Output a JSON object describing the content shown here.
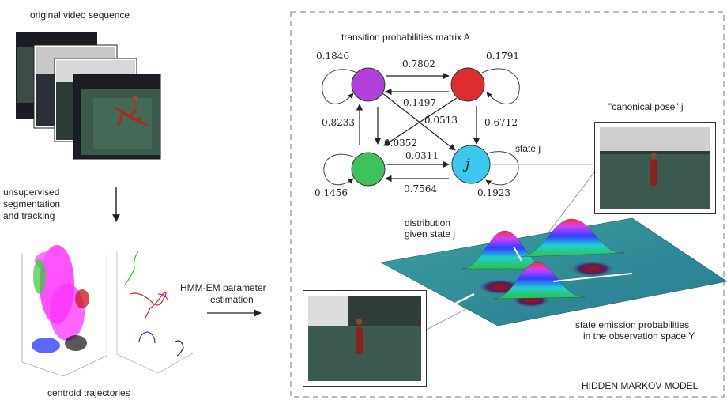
{
  "left": {
    "video_caption": "original video sequence",
    "segmentation_caption_1": "unsupervised",
    "segmentation_caption_2": "segmentation",
    "segmentation_caption_3": "and tracking",
    "trajectories_caption": "centroid trajectories",
    "estimation_caption_1": "HMM-EM parameter",
    "estimation_caption_2": "estimation"
  },
  "hmm": {
    "matrix_title": "transition probabilities matrix A",
    "state_j_symbol": "j",
    "state_j_label": "state j",
    "canonical_pose_label": "\"canonical pose\" j",
    "distribution_label_1": "distribution",
    "distribution_label_2": "given state j",
    "emission_label_1": "state emission probabilities",
    "emission_label_2": "in the observation space Y",
    "model_label": "HIDDEN MARKOV MODEL",
    "colors": {
      "purple": "#b040d8",
      "red": "#dd2e2e",
      "green": "#3ec05a",
      "cyan": "#3ac8ee"
    },
    "probabilities": {
      "purple_self": "0.1846",
      "purple_to_red": "0.7802",
      "red_self": "0.1791",
      "red_to_purple": "0.1497",
      "green_to_purple": "0.8233",
      "red_to_j": "0.0513",
      "red_down_to_j": "0.6712",
      "purple_to_green": "0.0352",
      "green_to_j": "0.0311",
      "green_self": "0.1456",
      "j_to_green": "0.7564",
      "j_self": "0.1923"
    }
  }
}
